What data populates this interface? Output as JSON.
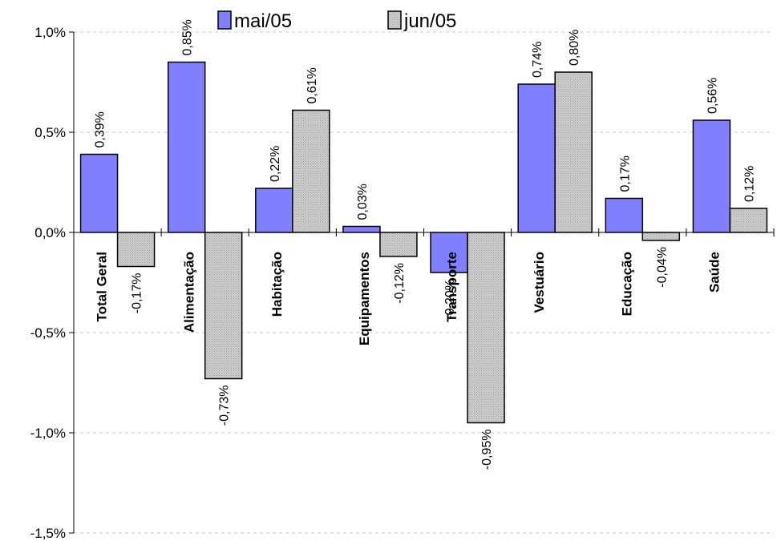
{
  "chart_data": {
    "type": "bar",
    "categories": [
      "Total Geral",
      "Alimentação",
      "Habitação",
      "Equipamentos",
      "Transporte",
      "Vestuário",
      "Educação",
      "Saúde"
    ],
    "series": [
      {
        "name": "mai/05",
        "color": "#8080ff",
        "values": [
          0.39,
          0.85,
          0.22,
          0.03,
          -0.2,
          0.74,
          0.17,
          0.56
        ],
        "labels": [
          "0,39%",
          "0,85%",
          "0,22%",
          "0,03%",
          "-0,20%",
          "0,74%",
          "0,17%",
          "0,56%"
        ]
      },
      {
        "name": "jun/05",
        "color": "#c0c0c0",
        "values": [
          -0.17,
          -0.73,
          0.61,
          -0.12,
          -0.95,
          0.8,
          -0.04,
          0.12
        ],
        "labels": [
          "-0,17%",
          "-0,73%",
          "0,61%",
          "-0,12%",
          "-0,95%",
          "0,80%",
          "-0,04%",
          "0,12%"
        ]
      }
    ],
    "y_ticks": [
      1.0,
      0.5,
      0.0,
      -0.5,
      -1.0,
      -1.5
    ],
    "y_tick_labels": [
      "1,0%",
      "0,5%",
      "0,0%",
      "-0,5%",
      "-1,0%",
      "-1,5%"
    ],
    "ylim": [
      -1.5,
      1.0
    ],
    "title": "",
    "xlabel": "",
    "ylabel": "",
    "grid": true,
    "legend_position": "top-center"
  }
}
